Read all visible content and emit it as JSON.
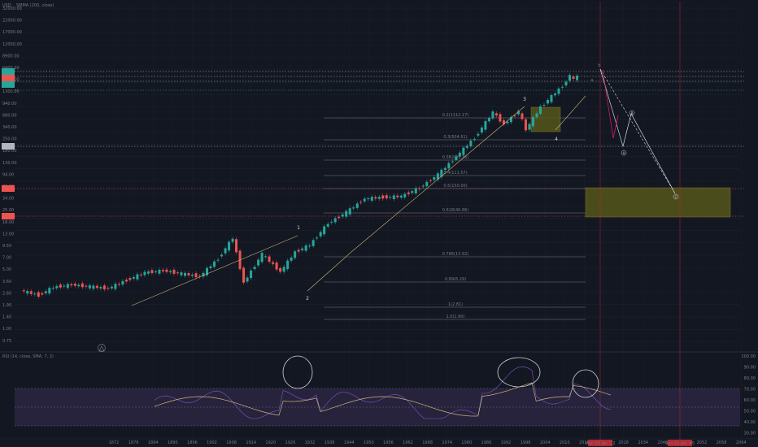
{
  "header": {
    "currency": "USD",
    "indicator": "SMMA (200, close)"
  },
  "rsi_panel": {
    "label": "RSI (14, close, SMA, 7, 2)",
    "ticks": [
      "100.00",
      "90.00",
      "80.00",
      "70.00",
      "60.00",
      "50.00",
      "40.00",
      "30.00"
    ]
  },
  "x_axis": {
    "ticks": [
      "1872",
      "1878",
      "1884",
      "1890",
      "1896",
      "1902",
      "1908",
      "1914",
      "1920",
      "1926",
      "1932",
      "1938",
      "1944",
      "1950",
      "1956",
      "1962",
      "1968",
      "1974",
      "1980",
      "1986",
      "1992",
      "1998",
      "2004",
      "2010",
      "2016",
      "2022",
      "2028",
      "2034",
      "2040",
      "2046",
      "2052",
      "2058",
      "2064"
    ],
    "highlight_labels": [
      "Mon 03 Jan '22",
      "Sun 01 Jan '45"
    ],
    "highlight_color": "#b22833"
  },
  "y_axis": {
    "ticks": [
      "32000.00",
      "22000.00",
      "17000.00",
      "12000.00",
      "8900.00",
      "6400.00",
      "1800.00",
      "1300.00",
      "940.00",
      "680.00",
      "340.00",
      "250.00",
      "180.00",
      "130.00",
      "94.00",
      "66.00",
      "34.00",
      "25.00",
      "18.00",
      "13.00",
      "9.50",
      "7.00",
      "5.00",
      "3.60",
      "2.60",
      "1.90",
      "1.40",
      "1.00",
      "0.75"
    ],
    "badges": [
      {
        "color": "#26a69a"
      },
      {
        "color": "#ef5350"
      },
      {
        "color": "#26a69a"
      },
      {
        "color": "#b2b5be"
      },
      {
        "color": "#ef5350"
      },
      {
        "color": "#ef5350"
      }
    ]
  },
  "fib_levels": [
    {
      "label": "0.2(1112.17)"
    },
    {
      "label": "0.3(504.61)"
    },
    {
      "label": "0.382(95.26)"
    },
    {
      "label": "0.4(111.57)"
    },
    {
      "label": "0.5(150.00)"
    },
    {
      "label": "0.618(46.86)"
    },
    {
      "label": "0.786(13.92)"
    },
    {
      "label": "0.89(6.29)"
    },
    {
      "label": "1(2.81)"
    },
    {
      "label": "1.0(1.90)"
    }
  ],
  "waves": {
    "impulse": [
      "1",
      "2",
      "3",
      "4"
    ],
    "minor": [
      "a",
      "b",
      "c"
    ],
    "corrective": [
      "A",
      "B",
      "C"
    ]
  },
  "colors": {
    "up": "#26a69a",
    "down": "#ef5350",
    "trend": "#c9b479",
    "zone_fill": "#5a5a1a",
    "rsi_band": "#2a2540",
    "rsi_line": "#7e57c2",
    "rsi_sma": "#c9b479"
  },
  "chart_data": {
    "type": "candlestick",
    "scale": "log",
    "x_range": [
      1869,
      2067
    ],
    "y_range": [
      0.75,
      32000
    ],
    "series": [
      {
        "name": "price (approx yearly close)",
        "x": [
          1871,
          1876,
          1880,
          1885,
          1890,
          1895,
          1900,
          1905,
          1910,
          1915,
          1920,
          1925,
          1929,
          1932,
          1937,
          1942,
          1946,
          1950,
          1955,
          1960,
          1965,
          1970,
          1975,
          1980,
          1985,
          1990,
          1995,
          2000,
          2003,
          2007,
          2009,
          2013,
          2017,
          2020,
          2021,
          2022,
          2023
        ],
        "y": [
          4.7,
          4.0,
          5.2,
          5.6,
          5.3,
          5.0,
          6.5,
          8.3,
          8.8,
          8.0,
          7.3,
          13.0,
          25.0,
          6.0,
          15.0,
          8.5,
          16.0,
          20.0,
          40.0,
          57.0,
          88.0,
          92.0,
          95.0,
          125.0,
          190.0,
          340.0,
          620.0,
          1400.0,
          950.0,
          1450.0,
          800.0,
          1650.0,
          2600.0,
          3700.0,
          4700.0,
          3900.0,
          4500.0
        ]
      }
    ]
  }
}
